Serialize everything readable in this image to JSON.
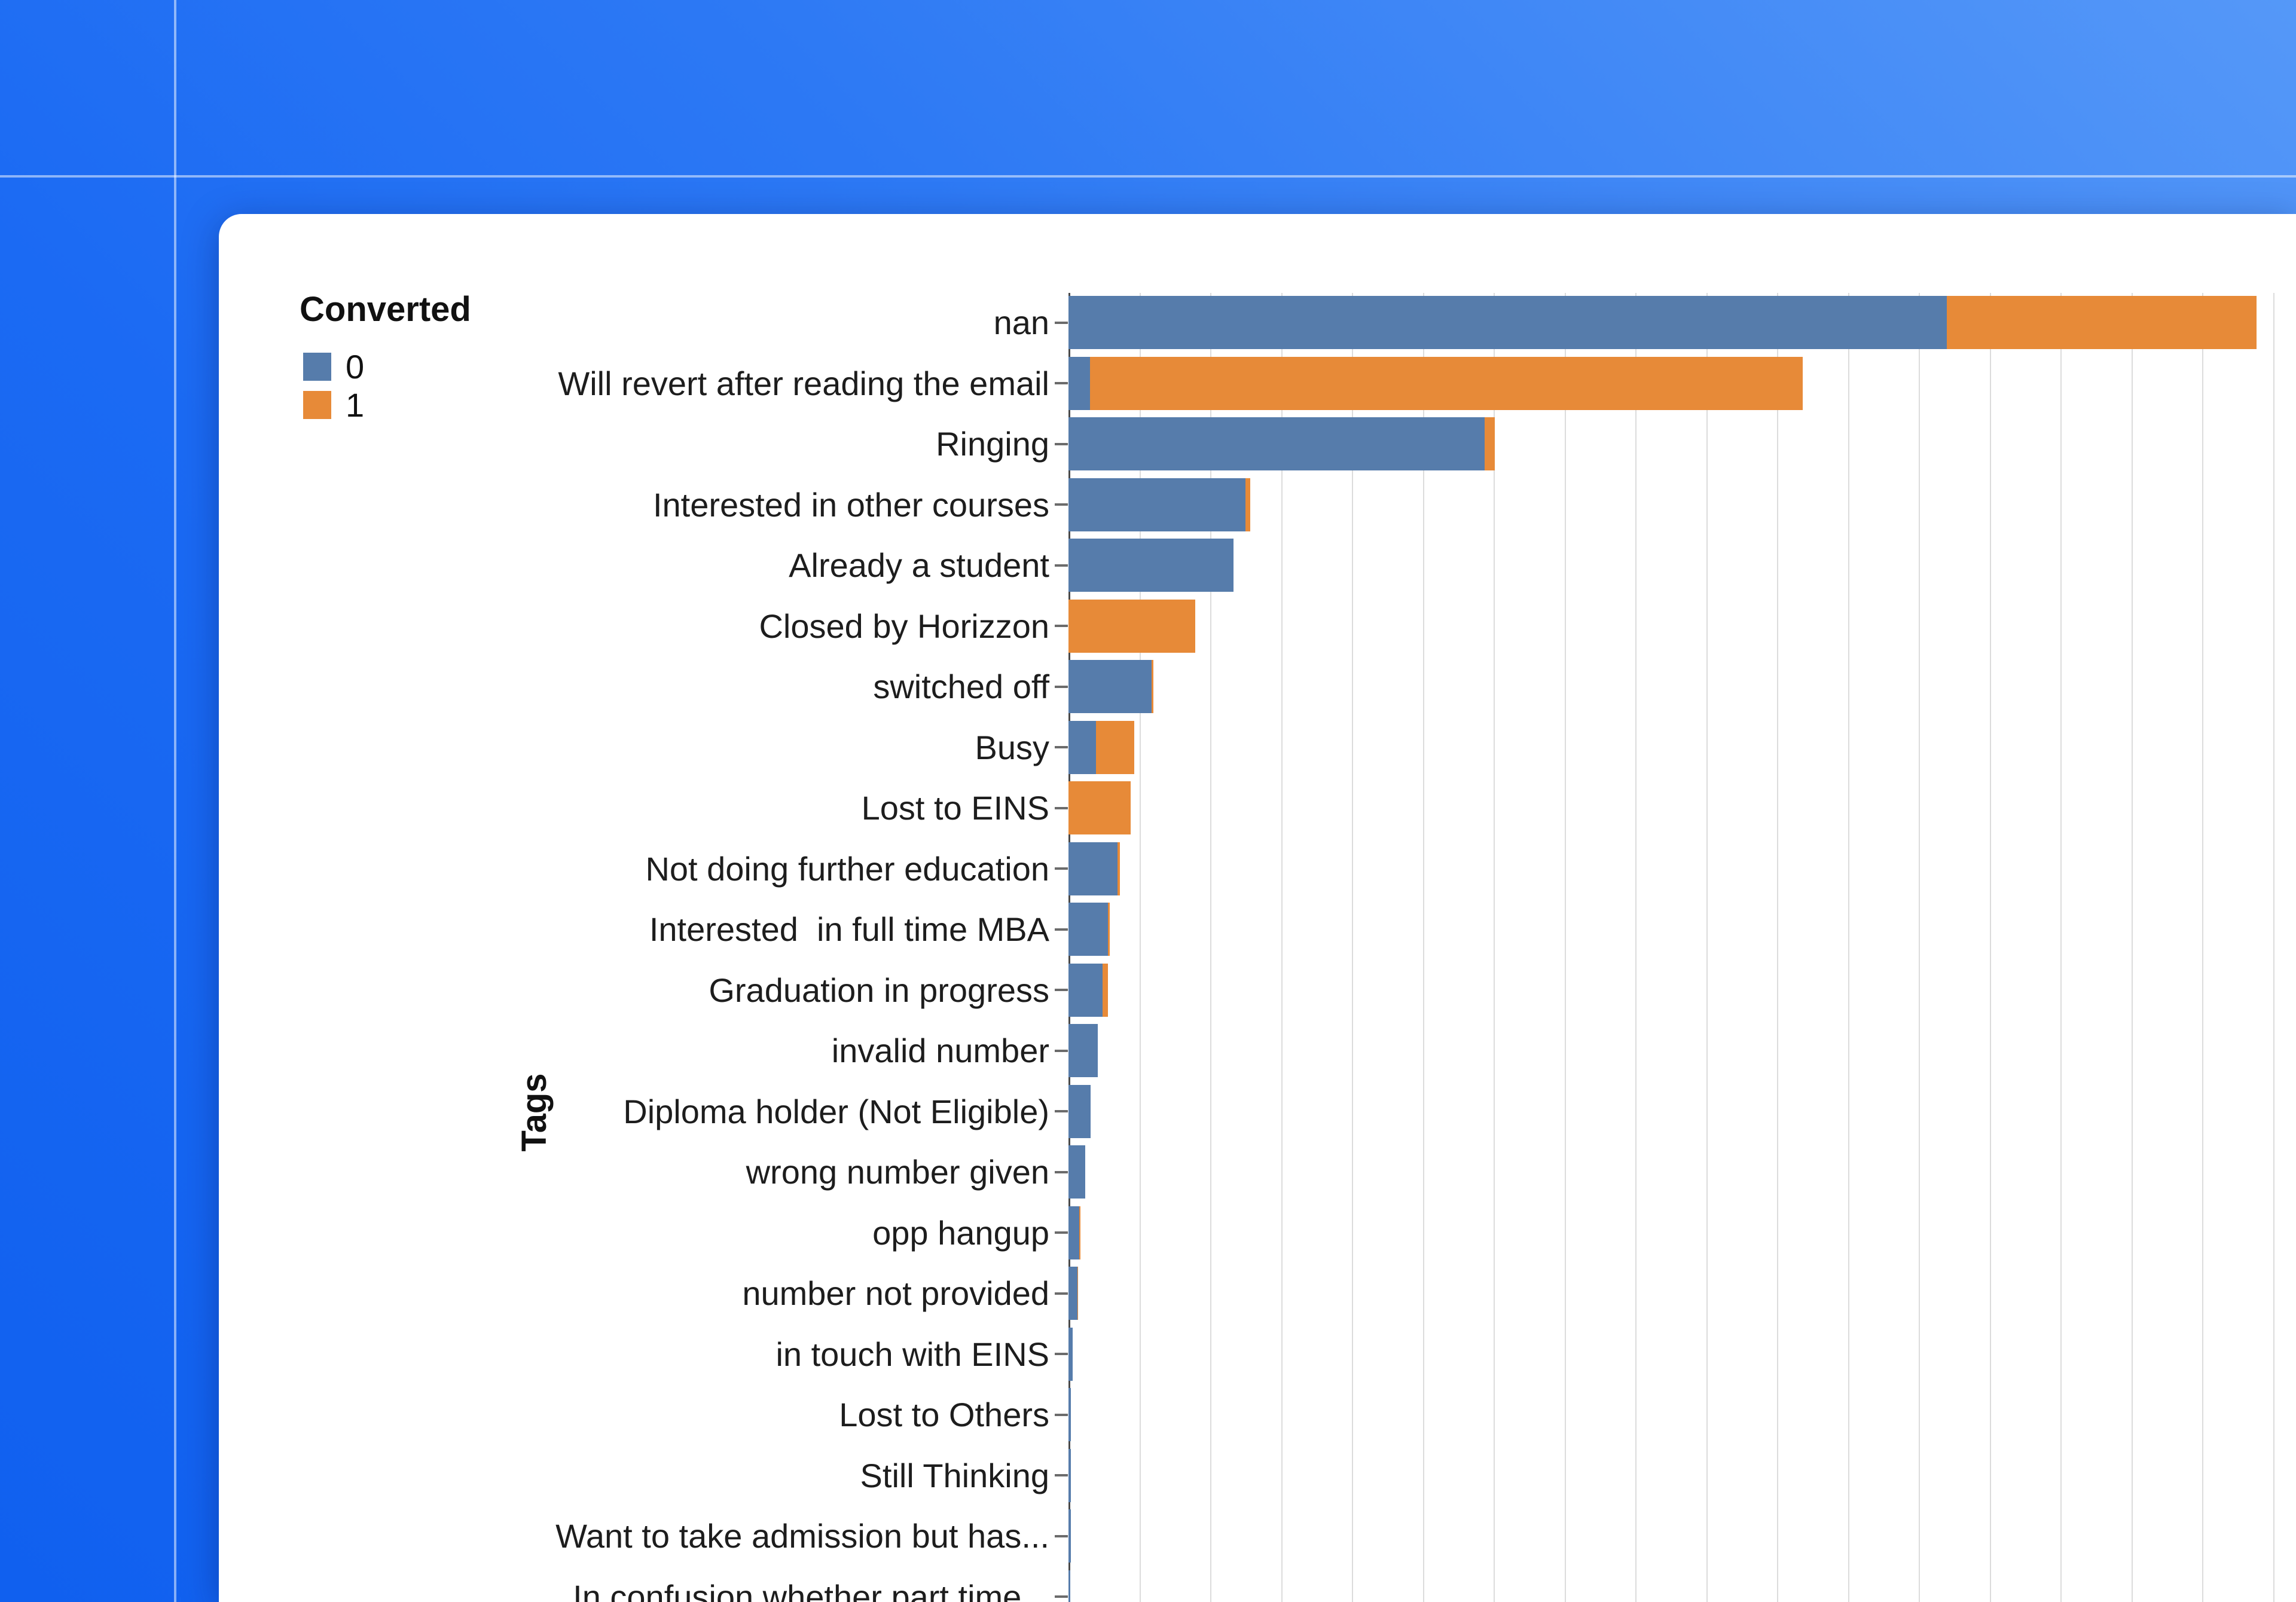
{
  "desktop": {
    "background_top_right_color": "#5598F8",
    "background_bottom_left_color": "#1060EF",
    "guide_line_color": "rgba(255,255,255,0.5)"
  },
  "card": {
    "background_color": "#FFFFFF"
  },
  "legend": {
    "title": "Converted",
    "items": [
      {
        "label": "0",
        "color": "#567CAB"
      },
      {
        "label": "1",
        "color": "#E78A38"
      }
    ]
  },
  "y_axis_title": "Tags",
  "chart_data": {
    "type": "bar",
    "orientation": "horizontal",
    "stacked": true,
    "title": "",
    "xlabel": "",
    "ylabel": "Tags",
    "legend_title": "Converted",
    "legend_position": "outside upper-left",
    "grid": "vertical light-gray gridlines every 200 units; x tick labels cut off below viewport",
    "gridline_interval": 200,
    "x_visible_range": [
      0,
      3450
    ],
    "categories": [
      "nan",
      "Will revert after reading the email",
      "Ringing",
      "Interested in other courses",
      "Already a student",
      "Closed by Horizzon",
      "switched off",
      "Busy",
      "Lost to EINS",
      "Not doing further education",
      "Interested  in full time MBA",
      "Graduation in progress",
      "invalid number",
      "Diploma holder (Not Eligible)",
      "wrong number given",
      "opp hangup",
      "number not provided",
      "in touch with EINS",
      "Lost to Others",
      "Still Thinking",
      "Want to take admission but has...",
      "In confusion whether part time..."
    ],
    "series": [
      {
        "name": "0",
        "color": "#567CAB",
        "values": [
          2480,
          60,
          1174,
          500,
          465,
          0,
          235,
          77,
          0,
          139,
          111,
          97,
          83,
          63,
          47,
          30,
          25,
          12,
          7,
          6,
          6,
          5
        ]
      },
      {
        "name": "1",
        "color": "#E78A38",
        "values": [
          873,
          2012,
          29,
          13,
          0,
          358,
          5,
          109,
          175,
          6,
          6,
          14,
          0,
          0,
          0,
          3,
          2,
          0,
          0,
          0,
          0,
          0
        ]
      }
    ]
  }
}
